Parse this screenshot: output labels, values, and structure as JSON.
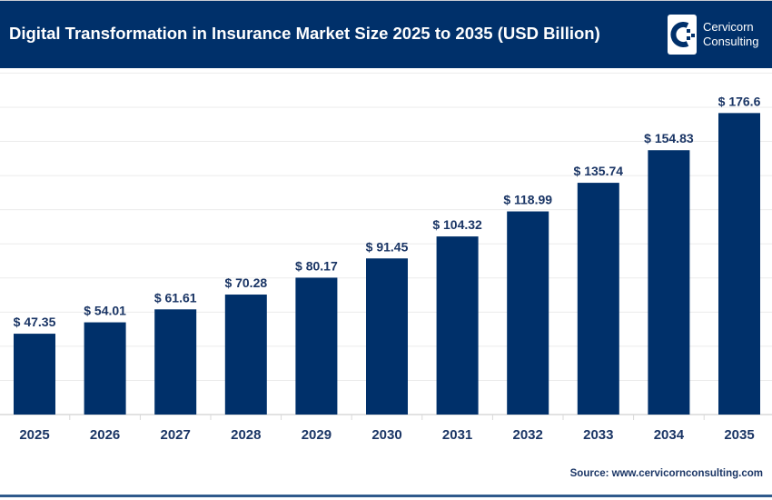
{
  "header": {
    "title": "Digital Transformation in Insurance Market Size 2025 to 2035 (USD Billion)",
    "logo_text_line1": "Cervicorn",
    "logo_text_line2": "Consulting",
    "background_color": "#00306a"
  },
  "source": "Source: www.cervicornconsulting.com",
  "chart_data": {
    "type": "bar",
    "categories": [
      "2025",
      "2026",
      "2027",
      "2028",
      "2029",
      "2030",
      "2031",
      "2032",
      "2033",
      "2034",
      "2035"
    ],
    "values": [
      47.35,
      54.01,
      61.61,
      70.28,
      80.17,
      91.45,
      104.32,
      118.99,
      135.74,
      154.83,
      176.6
    ],
    "labels": [
      "$ 47.35",
      "$ 54.01",
      "$ 61.61",
      "$ 70.28",
      "$ 80.17",
      "$ 91.45",
      "$ 104.32",
      "$ 118.99",
      "$ 135.74",
      "$ 154.83",
      "$ 176.6"
    ],
    "ylim": [
      0,
      200
    ],
    "grid": true,
    "bar_color": "#00306a",
    "label_color": "#1a3565"
  }
}
